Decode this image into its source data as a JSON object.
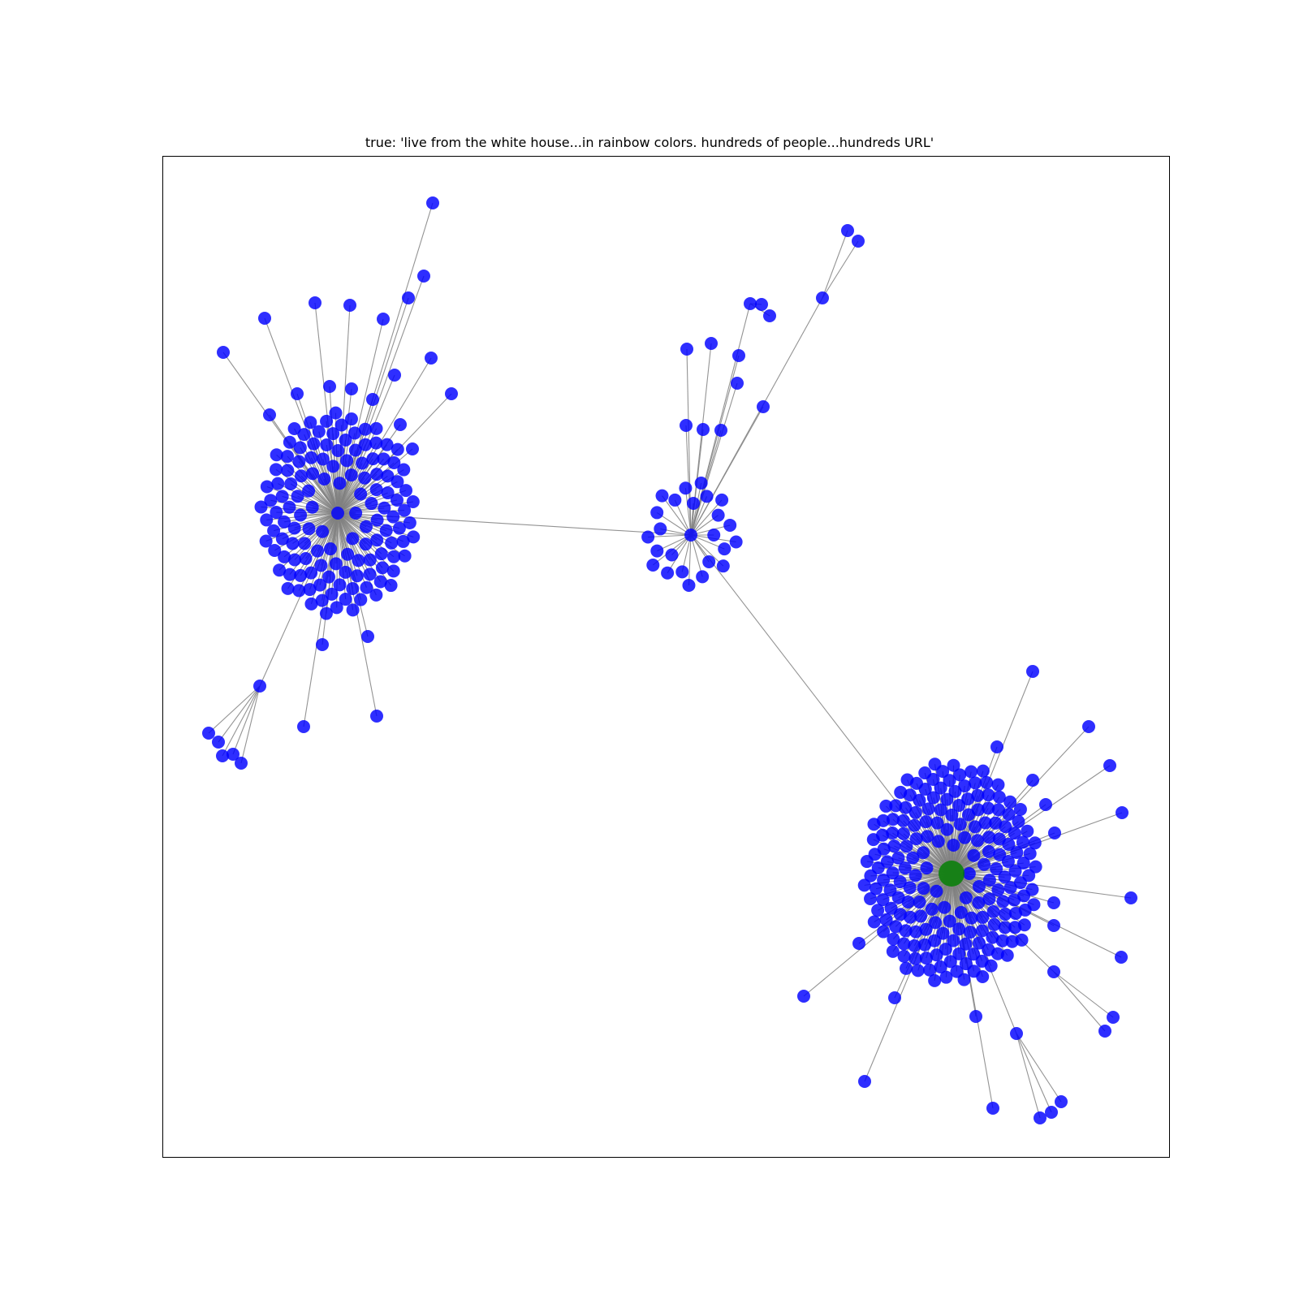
{
  "figure": {
    "title": "true: 'live from the white house...in rainbow colors. hundreds of people...hundreds URL'"
  },
  "colors": {
    "node": "#0000ff",
    "root_node": "#008000",
    "edge": "#808080",
    "frame": "#000000",
    "background": "#ffffff"
  },
  "graph": {
    "type": "network",
    "clusters": [
      {
        "name": "left-cluster",
        "hub_is_root": false,
        "inner_leaf_count": 132,
        "outer_leaf_count": 26
      },
      {
        "name": "middle-cluster",
        "hub_is_root": false,
        "inner_leaf_count": 24,
        "outer_leaf_count": 10
      },
      {
        "name": "right-cluster",
        "hub_is_root": true,
        "inner_leaf_count": 196,
        "outer_leaf_count": 28
      }
    ],
    "inter_cluster_edges": [
      [
        "left-cluster",
        "middle-cluster"
      ],
      [
        "middle-cluster",
        "right-cluster"
      ]
    ]
  }
}
